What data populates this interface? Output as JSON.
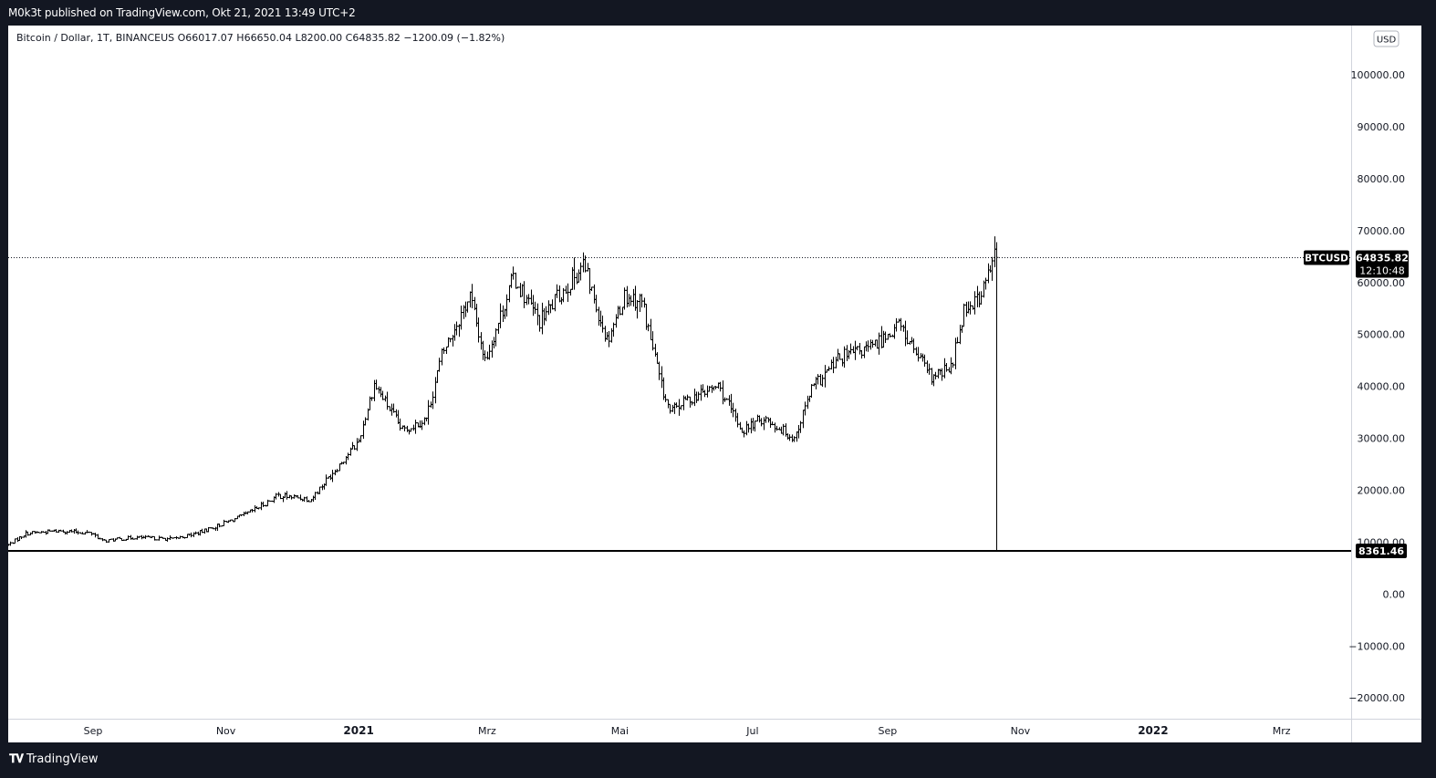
{
  "header": {
    "published": "M0k3t published on TradingView.com, Okt 21, 2021 13:49 UTC+2"
  },
  "footer": {
    "brand": "TradingView"
  },
  "chart_data": {
    "type": "ohlc",
    "legend": {
      "symbol_desc": "Bitcoin / Dollar, 1T, BINANCEUS",
      "open": "O66017.07",
      "high": "H66650.04",
      "low": "L8200.00",
      "close": "C64835.82",
      "change": "−1200.09 (−1.82%)"
    },
    "currency_badge": "USD",
    "y_ticks": [
      100000,
      90000,
      80000,
      70000,
      60000,
      50000,
      40000,
      30000,
      20000,
      10000,
      0,
      -10000,
      -20000
    ],
    "y_tick_labels": [
      "100000.00",
      "90000.00",
      "80000.00",
      "70000.00",
      "60000.00",
      "50000.00",
      "40000.00",
      "30000.00",
      "20000.00",
      "10000.00",
      "0.00",
      "−10000.00",
      "−20000.00"
    ],
    "x_ticks": [
      {
        "label": "Sep",
        "date": "2020-09-01"
      },
      {
        "label": "Nov",
        "date": "2020-11-01"
      },
      {
        "label": "2021",
        "date": "2021-01-01"
      },
      {
        "label": "Mrz",
        "date": "2021-03-01"
      },
      {
        "label": "Mai",
        "date": "2021-05-01"
      },
      {
        "label": "Jul",
        "date": "2021-07-01"
      },
      {
        "label": "Sep",
        "date": "2021-09-01"
      },
      {
        "label": "Nov",
        "date": "2021-11-01"
      },
      {
        "label": "2022",
        "date": "2022-01-01"
      },
      {
        "label": "Mrz",
        "date": "2022-03-01"
      }
    ],
    "x_range": [
      "2020-07-24",
      "2022-04-02"
    ],
    "y_range": [
      -24000,
      109500
    ],
    "last_price": {
      "symbol": "BTCUSD",
      "value": 64835.82,
      "label": "64835.82",
      "countdown": "12:10:48"
    },
    "horizontal_line": {
      "value": 8361.46,
      "label": "8361.46"
    },
    "anomaly_low": {
      "date": "2021-10-21",
      "value": 8200
    },
    "close_series": [
      [
        "2020-07-24",
        9500
      ],
      [
        "2020-08-01",
        11700
      ],
      [
        "2020-08-17",
        12200
      ],
      [
        "2020-09-01",
        11700
      ],
      [
        "2020-09-05",
        10200
      ],
      [
        "2020-09-20",
        10900
      ],
      [
        "2020-10-08",
        10600
      ],
      [
        "2020-10-20",
        11900
      ],
      [
        "2020-11-01",
        13800
      ],
      [
        "2020-11-10",
        15300
      ],
      [
        "2020-11-25",
        19000
      ],
      [
        "2020-12-10",
        18300
      ],
      [
        "2020-12-20",
        23500
      ],
      [
        "2021-01-01",
        29500
      ],
      [
        "2021-01-08",
        40500
      ],
      [
        "2021-01-21",
        31500
      ],
      [
        "2021-02-01",
        33800
      ],
      [
        "2021-02-08",
        46000
      ],
      [
        "2021-02-21",
        57500
      ],
      [
        "2021-02-28",
        45000
      ],
      [
        "2021-03-13",
        61000
      ],
      [
        "2021-03-25",
        52500
      ],
      [
        "2021-04-05",
        58500
      ],
      [
        "2021-04-14",
        63500
      ],
      [
        "2021-04-25",
        49000
      ],
      [
        "2021-05-03",
        57500
      ],
      [
        "2021-05-11",
        56500
      ],
      [
        "2021-05-20",
        40000
      ],
      [
        "2021-05-24",
        35000
      ],
      [
        "2021-06-01",
        37500
      ],
      [
        "2021-06-15",
        40000
      ],
      [
        "2021-06-26",
        31500
      ],
      [
        "2021-07-06",
        34000
      ],
      [
        "2021-07-20",
        30000
      ],
      [
        "2021-07-28",
        39500
      ],
      [
        "2021-08-10",
        45500
      ],
      [
        "2021-08-25",
        47500
      ],
      [
        "2021-09-06",
        52000
      ],
      [
        "2021-09-21",
        41500
      ],
      [
        "2021-09-30",
        43500
      ],
      [
        "2021-10-06",
        55000
      ],
      [
        "2021-10-14",
        57500
      ],
      [
        "2021-10-20",
        65500
      ],
      [
        "2021-10-21",
        64835.82
      ]
    ]
  },
  "colors": {
    "bar": "#000000",
    "background": "#ffffff",
    "axis_text": "#131722",
    "frame": "#131722"
  }
}
